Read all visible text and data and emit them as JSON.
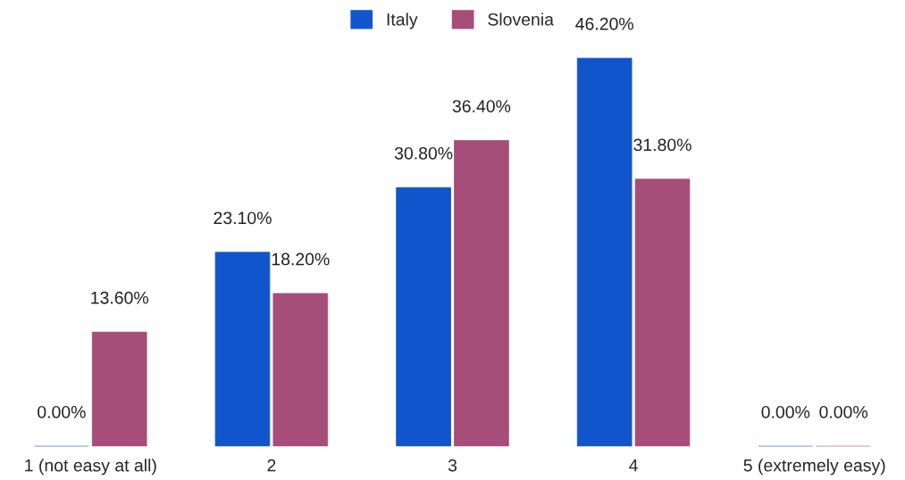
{
  "chart_data": {
    "type": "bar",
    "categories": [
      "1 (not easy at all)",
      "2",
      "3",
      "4",
      "5 (extremely easy)"
    ],
    "series": [
      {
        "name": "Italy",
        "color": "#1155cc",
        "values": [
          0,
          23.1,
          30.8,
          46.2,
          0
        ],
        "value_labels": [
          "0.00%",
          "23.10%",
          "30.80%",
          "46.20%",
          "0.00%"
        ]
      },
      {
        "name": "Slovenia",
        "color": "#a64d79",
        "values": [
          13.6,
          18.2,
          36.4,
          31.8,
          0
        ],
        "value_labels": [
          "13.60%",
          "18.20%",
          "36.40%",
          "31.80%",
          "0.00%"
        ]
      }
    ],
    "legend": "top"
  }
}
